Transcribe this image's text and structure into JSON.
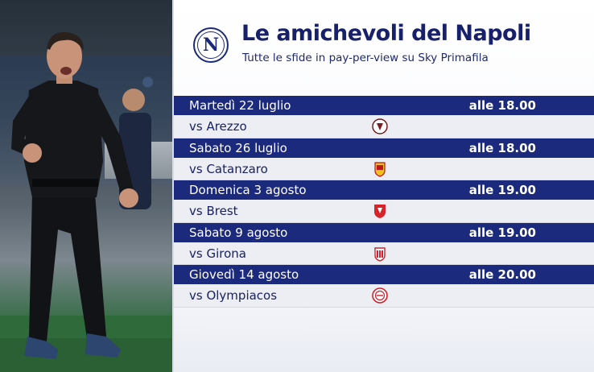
{
  "header": {
    "title": "Le amichevoli del Napoli",
    "subtitle": "Tutte le sfide in pay-per-view su Sky Primafila",
    "logo_letter": "N"
  },
  "matches": [
    {
      "date": "Martedì 22 luglio",
      "time": "alle 18.00",
      "opponent": "vs Arezzo",
      "crest_icon": "arezzo-crest-icon"
    },
    {
      "date": "Sabato 26 luglio",
      "time": "alle 18.00",
      "opponent": "vs Catanzaro",
      "crest_icon": "catanzaro-crest-icon"
    },
    {
      "date": "Domenica 3 agosto",
      "time": "alle 19.00",
      "opponent": "vs Brest",
      "crest_icon": "brest-crest-icon"
    },
    {
      "date": "Sabato 9 agosto",
      "time": "alle 19.00",
      "opponent": "vs Girona",
      "crest_icon": "girona-crest-icon"
    },
    {
      "date": "Giovedì 14 agosto",
      "time": "alle 20.00",
      "opponent": "vs Olympiacos",
      "crest_icon": "olympiacos-crest-icon"
    }
  ],
  "colors": {
    "navy": "#1b2a7c",
    "row_bg": "#eceef4",
    "title": "#17206a"
  }
}
